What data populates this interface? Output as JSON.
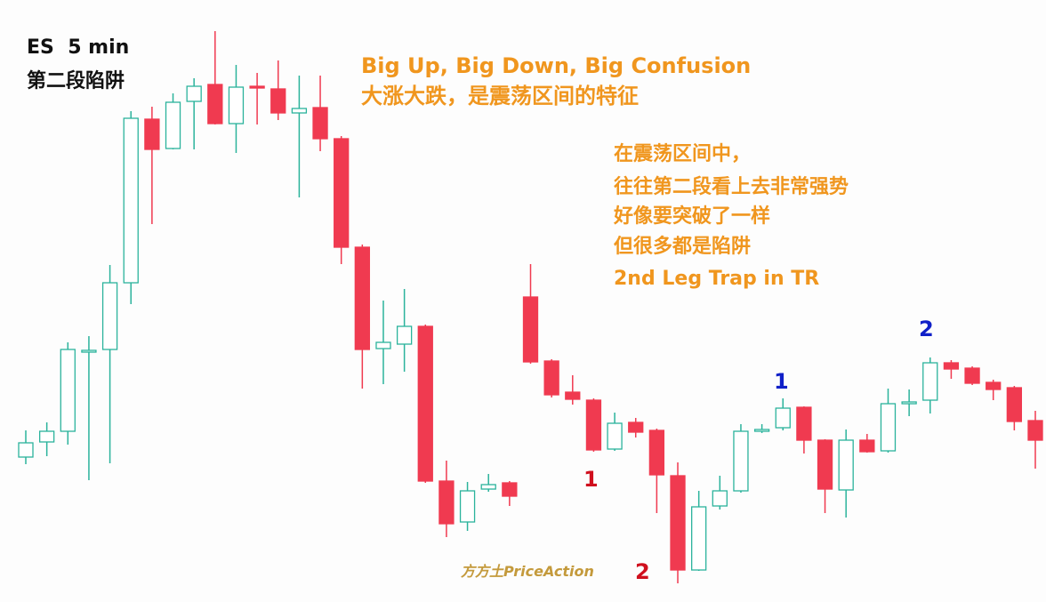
{
  "chart_data": {
    "type": "candlestick",
    "title": "ES  5 min",
    "subtitle": "第二段陷阱",
    "up_color": "#2bb39c",
    "down_color": "#f03a50",
    "ylim": [
      0,
      677
    ],
    "open": [
      163,
      180,
      192,
      281,
      284,
      359,
      543,
      510,
      563,
      582,
      538,
      580,
      577,
      550,
      556,
      521,
      399,
      285,
      290,
      310,
      136,
      90,
      127,
      134,
      343,
      271,
      236,
      227,
      172,
      202,
      193,
      142,
      36,
      108,
      125,
      192,
      196,
      219,
      182,
      126,
      182,
      170,
      223,
      227,
      269,
      263,
      247,
      241,
      204
    ],
    "high": [
      193,
      202,
      292,
      299,
      379,
      552,
      557,
      572,
      589,
      642,
      604,
      595,
      609,
      592,
      592,
      524,
      402,
      339,
      352,
      312,
      159,
      135,
      144,
      136,
      380,
      273,
      255,
      229,
      213,
      207,
      195,
      157,
      125,
      142,
      200,
      200,
      229,
      220,
      183,
      194,
      189,
      240,
      239,
      275,
      272,
      265,
      250,
      243,
      215
    ],
    "low": [
      155,
      164,
      177,
      137,
      156,
      335,
      425,
      509,
      509,
      537,
      505,
      537,
      542,
      455,
      507,
      380,
      240,
      245,
      259,
      134,
      73,
      80,
      124,
      108,
      268,
      230,
      222,
      169,
      170,
      185,
      100,
      21,
      35,
      104,
      123,
      190,
      193,
      167,
      100,
      95,
      168,
      168,
      209,
      212,
      251,
      244,
      227,
      193,
      150
    ],
    "close": [
      179,
      192,
      284,
      283,
      359,
      544,
      509,
      562,
      580,
      538,
      579,
      578,
      550,
      555,
      521,
      399,
      284,
      292,
      310,
      136,
      88,
      125,
      132,
      119,
      270,
      233,
      228,
      171,
      201,
      191,
      143,
      36,
      107,
      125,
      192,
      194,
      218,
      182,
      127,
      182,
      169,
      223,
      225,
      269,
      262,
      246,
      239,
      203,
      182
    ],
    "annotations": [
      {
        "text": "Big Up, Big Down, Big Confusion",
        "color": "#f0961e"
      },
      {
        "text": "大涨大跌，是震荡区间的特征",
        "color": "#f0961e"
      },
      {
        "text": "在震荡区间中，",
        "color": "#f0961e"
      },
      {
        "text": "往往第二段看上去非常强势",
        "color": "#f0961e"
      },
      {
        "text": "好像要突破了一样",
        "color": "#f0961e"
      },
      {
        "text": "但很多都是陷阱",
        "color": "#f0961e"
      },
      {
        "text": "2nd Leg Trap in TR",
        "color": "#f0961e"
      },
      {
        "text": "1",
        "color": "#d0101e"
      },
      {
        "text": "2",
        "color": "#d0101e"
      },
      {
        "text": "1",
        "color": "#1020c8"
      },
      {
        "text": "2",
        "color": "#1020c8"
      },
      {
        "text": "方方土PriceAction",
        "color": "#c49a3c"
      }
    ]
  }
}
